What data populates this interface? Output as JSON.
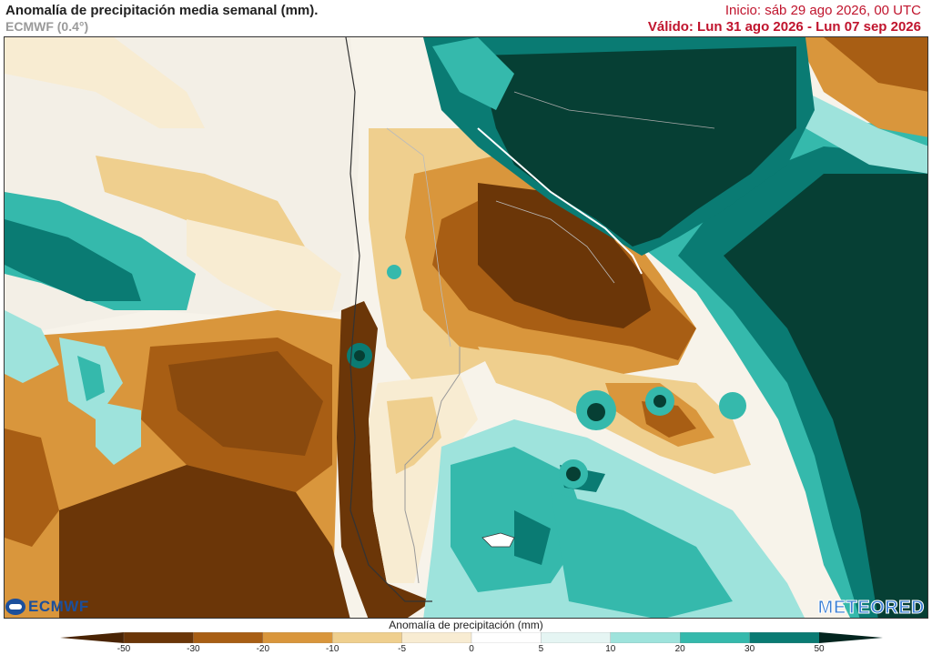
{
  "header": {
    "title": "Anomalía de precipitación media semanal (mm).",
    "model": "ECMWF (0.4°)",
    "init": "Inicio:  sáb 29 ago 2026, 00 UTC",
    "valid": "Válido: Lun 31 ago 2026 - Lun 07 sep 2026"
  },
  "logos": {
    "left": "ECMWF",
    "right": "METEORED"
  },
  "colorbar": {
    "label": "Anomalía de precipitación (mm)",
    "ticks": [
      "-50",
      "-30",
      "-20",
      "-10",
      "-5",
      "0",
      "5",
      "10",
      "20",
      "30",
      "50"
    ],
    "colors": [
      "#6b3608",
      "#a85e14",
      "#d9963c",
      "#efcf8e",
      "#f8ecd2",
      "#ffffff",
      "#e5f5f3",
      "#9ee3dc",
      "#35b9ac",
      "#0a7b73",
      "#063f34"
    ]
  }
}
